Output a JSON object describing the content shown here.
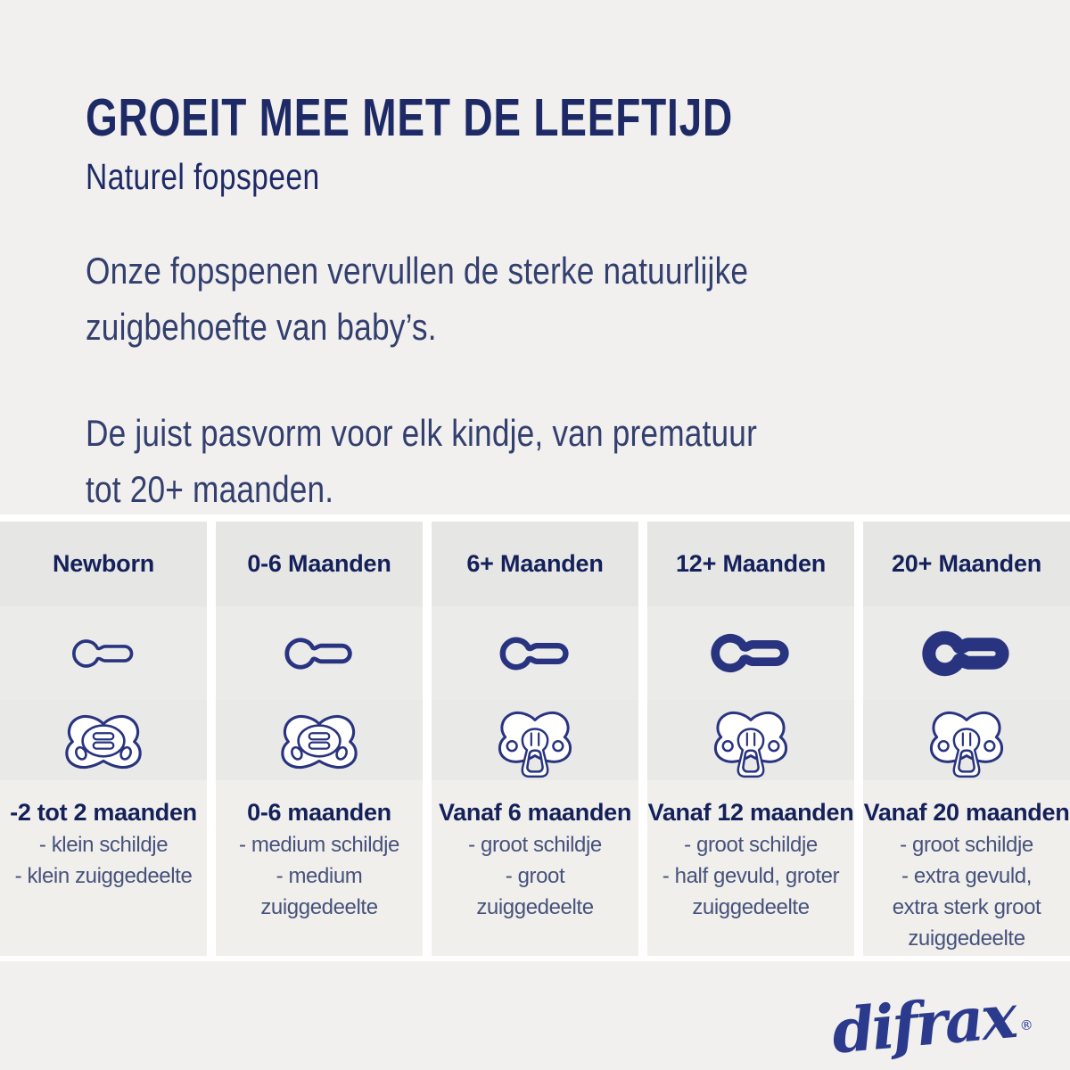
{
  "header": {
    "title": "GROEIT MEE MET DE LEEFTIJD",
    "subtitle": "Naturel fopspeen"
  },
  "intro": {
    "paragraph1_lines": [
      "Onze fopspenen vervullen de sterke natuurlijke",
      "zuigbehoefte van baby’s."
    ],
    "paragraph2_lines": [
      "De juist pasvorm voor elk kindje, van prematuur",
      "tot 20+ maanden."
    ]
  },
  "table": {
    "columns": [
      {
        "header": "Newborn",
        "age_label": "-2 tot 2 maanden",
        "details": [
          "- klein schildje",
          "- klein zuiggedeelte"
        ],
        "teat": {
          "scale": 0.74,
          "stroke": 5
        },
        "pacifier_style": "button"
      },
      {
        "header": "0-6 Maanden",
        "age_label": "0-6 maanden",
        "details": [
          "- medium schildje",
          "- medium",
          "zuiggedeelte"
        ],
        "teat": {
          "scale": 0.8,
          "stroke": 6
        },
        "pacifier_style": "button"
      },
      {
        "header": "6+ Maanden",
        "age_label": "Vanaf 6 maanden",
        "details": [
          "- groot schildje",
          "- groot",
          "zuiggedeelte"
        ],
        "teat": {
          "scale": 0.8,
          "stroke": 8
        },
        "pacifier_style": "ring"
      },
      {
        "header": "12+ Maanden",
        "age_label": "Vanaf 12 maanden",
        "details": [
          "- groot schildje",
          "- half gevuld, groter",
          "zuiggedeelte"
        ],
        "teat": {
          "scale": 0.88,
          "stroke": 11
        },
        "pacifier_style": "ring"
      },
      {
        "header": "20+ Maanden",
        "age_label": "Vanaf 20 maanden",
        "details": [
          "- groot schildje",
          "- extra gevuld,",
          "extra sterk groot",
          "zuiggedeelte"
        ],
        "teat": {
          "scale": 0.94,
          "stroke": 16
        },
        "pacifier_style": "ring"
      }
    ]
  },
  "footer": {
    "logo_text": "difrax",
    "registered_mark": "®"
  },
  "colors": {
    "navy-title": "#1e2a66",
    "navy-heading": "#14205a",
    "navy-body": "#333f6e",
    "navy-detail": "#47527b",
    "navy-icon": "#293480",
    "navy-logo": "#2b3a8c",
    "page-bg": "#f1f0ee",
    "card-bg-1": "#e6e7e4",
    "card-bg-2": "#ebece9",
    "card-bg-3": "#e9eae7",
    "card-bg-4": "#f0efec",
    "divider": "#ffffff"
  }
}
